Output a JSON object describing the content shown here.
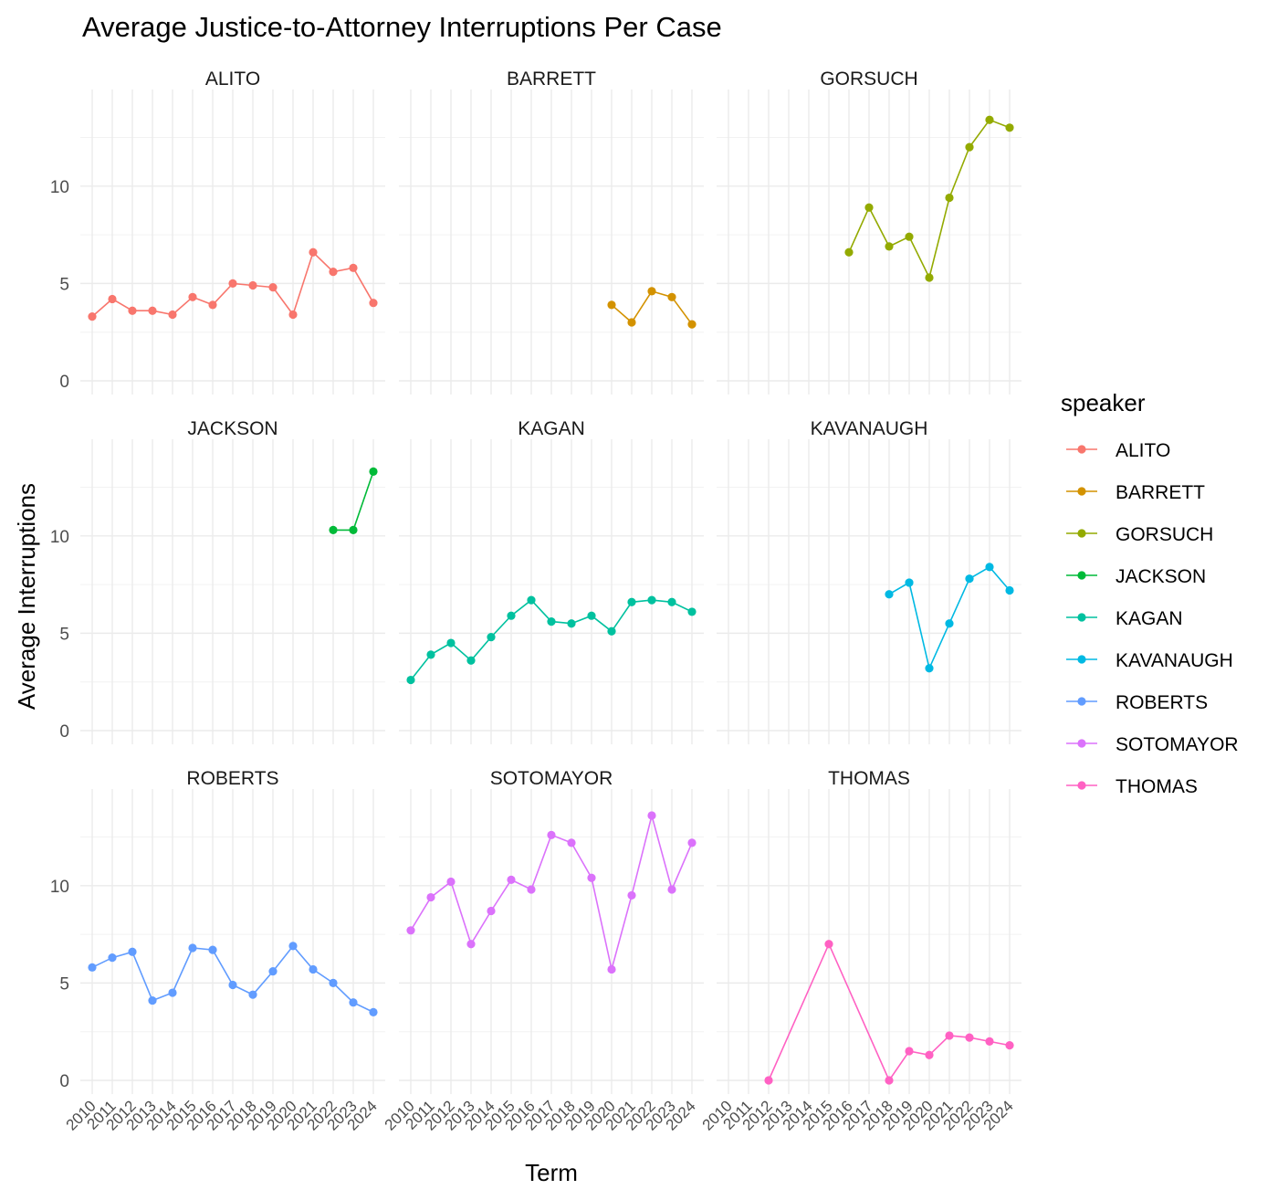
{
  "chart_data": {
    "type": "line",
    "title": "Average Justice-to-Attorney Interruptions Per Case",
    "xlabel": "Term",
    "ylabel": "Average Interruptions",
    "legend_title": "speaker",
    "legend_position": "right",
    "grid": true,
    "facets": "wrap by speaker, 3 columns, shared axes",
    "x": [
      2010,
      2011,
      2012,
      2013,
      2014,
      2015,
      2016,
      2017,
      2018,
      2019,
      2020,
      2021,
      2022,
      2023,
      2024
    ],
    "x_ticks": [
      "2010",
      "2011",
      "2012",
      "2013",
      "2014",
      "2015",
      "2016",
      "2017",
      "2018",
      "2019",
      "2020",
      "2021",
      "2022",
      "2023",
      "2024"
    ],
    "xlim": [
      2010,
      2024
    ],
    "y_ticks": [
      "0",
      "5",
      "10"
    ],
    "ylim": [
      0,
      13.6
    ],
    "series": [
      {
        "name": "ALITO",
        "color": "#F8766D",
        "points": [
          [
            2010,
            3.3
          ],
          [
            2011,
            4.2
          ],
          [
            2012,
            3.6
          ],
          [
            2013,
            3.6
          ],
          [
            2014,
            3.4
          ],
          [
            2015,
            4.3
          ],
          [
            2016,
            3.9
          ],
          [
            2017,
            5.0
          ],
          [
            2018,
            4.9
          ],
          [
            2019,
            4.8
          ],
          [
            2020,
            3.4
          ],
          [
            2021,
            6.6
          ],
          [
            2022,
            5.6
          ],
          [
            2023,
            5.8
          ],
          [
            2024,
            4.0
          ]
        ]
      },
      {
        "name": "BARRETT",
        "color": "#D39200",
        "points": [
          [
            2020,
            3.9
          ],
          [
            2021,
            3.0
          ],
          [
            2022,
            4.6
          ],
          [
            2023,
            4.3
          ],
          [
            2024,
            2.9
          ]
        ]
      },
      {
        "name": "GORSUCH",
        "color": "#93AA00",
        "points": [
          [
            2016,
            6.6
          ],
          [
            2017,
            8.9
          ],
          [
            2018,
            6.9
          ],
          [
            2019,
            7.4
          ],
          [
            2020,
            5.3
          ],
          [
            2021,
            9.4
          ],
          [
            2022,
            12.0
          ],
          [
            2023,
            13.4
          ],
          [
            2024,
            13.0
          ]
        ]
      },
      {
        "name": "JACKSON",
        "color": "#00BA38",
        "points": [
          [
            2022,
            10.3
          ],
          [
            2023,
            10.3
          ],
          [
            2024,
            13.3
          ]
        ]
      },
      {
        "name": "KAGAN",
        "color": "#00C19F",
        "points": [
          [
            2010,
            2.6
          ],
          [
            2011,
            3.9
          ],
          [
            2012,
            4.5
          ],
          [
            2013,
            3.6
          ],
          [
            2014,
            4.8
          ],
          [
            2015,
            5.9
          ],
          [
            2016,
            6.7
          ],
          [
            2017,
            5.6
          ],
          [
            2018,
            5.5
          ],
          [
            2019,
            5.9
          ],
          [
            2020,
            5.1
          ],
          [
            2021,
            6.6
          ],
          [
            2022,
            6.7
          ],
          [
            2023,
            6.6
          ],
          [
            2024,
            6.1
          ]
        ]
      },
      {
        "name": "KAVANAUGH",
        "color": "#00B9E3",
        "points": [
          [
            2018,
            7.0
          ],
          [
            2019,
            7.6
          ],
          [
            2020,
            3.2
          ],
          [
            2021,
            5.5
          ],
          [
            2022,
            7.8
          ],
          [
            2023,
            8.4
          ],
          [
            2024,
            7.2
          ]
        ]
      },
      {
        "name": "ROBERTS",
        "color": "#619CFF",
        "points": [
          [
            2010,
            5.8
          ],
          [
            2011,
            6.3
          ],
          [
            2012,
            6.6
          ],
          [
            2013,
            4.1
          ],
          [
            2014,
            4.5
          ],
          [
            2015,
            6.8
          ],
          [
            2016,
            6.7
          ],
          [
            2017,
            4.9
          ],
          [
            2018,
            4.4
          ],
          [
            2019,
            5.6
          ],
          [
            2020,
            6.9
          ],
          [
            2021,
            5.7
          ],
          [
            2022,
            5.0
          ],
          [
            2023,
            4.0
          ],
          [
            2024,
            3.5
          ]
        ]
      },
      {
        "name": "SOTOMAYOR",
        "color": "#DB72FB",
        "points": [
          [
            2010,
            7.7
          ],
          [
            2011,
            9.4
          ],
          [
            2012,
            10.2
          ],
          [
            2013,
            7.0
          ],
          [
            2014,
            8.7
          ],
          [
            2015,
            10.3
          ],
          [
            2016,
            9.8
          ],
          [
            2017,
            12.6
          ],
          [
            2018,
            12.2
          ],
          [
            2019,
            10.4
          ],
          [
            2020,
            5.7
          ],
          [
            2021,
            9.5
          ],
          [
            2022,
            13.6
          ],
          [
            2023,
            9.8
          ],
          [
            2024,
            12.2
          ]
        ]
      },
      {
        "name": "THOMAS",
        "color": "#FF61C3",
        "points": [
          [
            2012,
            0.0
          ],
          [
            2015,
            7.0
          ],
          [
            2018,
            0.0
          ],
          [
            2019,
            1.5
          ],
          [
            2020,
            1.3
          ],
          [
            2021,
            2.3
          ],
          [
            2022,
            2.2
          ],
          [
            2023,
            2.0
          ],
          [
            2024,
            1.8
          ]
        ]
      }
    ]
  }
}
